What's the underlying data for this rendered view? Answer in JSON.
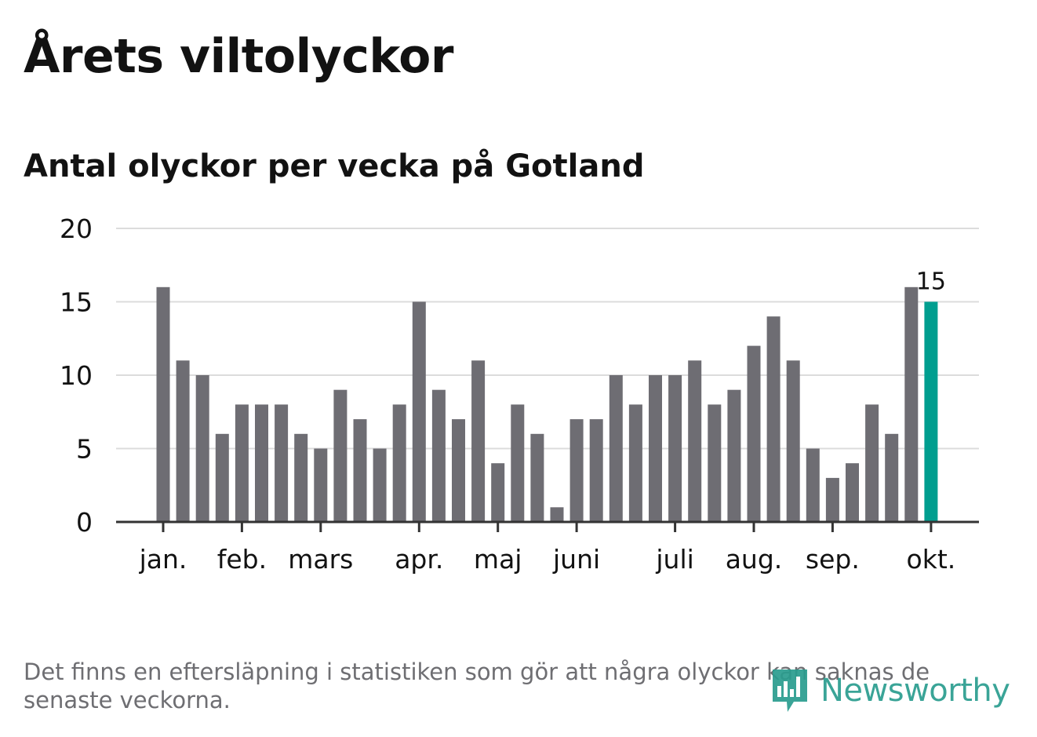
{
  "title": "Årets viltolyckor",
  "subtitle": "Antal olyckor per vecka på Gotland",
  "footnote": "Det finns en eftersläpning i statistiken som gör att några olyckor kan saknas de senaste veckorna.",
  "logo": {
    "text": "Newsworthy",
    "icon": "bar-chart-speech-bubble-icon"
  },
  "colors": {
    "bar": "#6e6d73",
    "highlight": "#009e8f",
    "grid": "#dcdcdc",
    "axis": "#333333",
    "text": "#121212",
    "muted": "#6e6e72"
  },
  "chart_data": {
    "type": "bar",
    "title": "Årets viltolyckor",
    "subtitle": "Antal olyckor per vecka på Gotland",
    "xlabel": "",
    "ylabel": "",
    "ylim": [
      0,
      20
    ],
    "yticks": [
      0,
      5,
      10,
      15,
      20
    ],
    "grid": true,
    "values": [
      16,
      11,
      10,
      6,
      8,
      8,
      8,
      6,
      5,
      9,
      7,
      5,
      8,
      15,
      9,
      7,
      11,
      4,
      8,
      6,
      1,
      7,
      7,
      10,
      8,
      10,
      10,
      11,
      8,
      9,
      12,
      14,
      11,
      5,
      3,
      4,
      8,
      6,
      16,
      15
    ],
    "highlight_index": 39,
    "highlight_label": "15",
    "month_ticks": [
      {
        "label": "jan.",
        "bar_index": 0
      },
      {
        "label": "feb.",
        "bar_index": 4
      },
      {
        "label": "mars",
        "bar_index": 8
      },
      {
        "label": "apr.",
        "bar_index": 13
      },
      {
        "label": "maj",
        "bar_index": 17
      },
      {
        "label": "juni",
        "bar_index": 21
      },
      {
        "label": "juli",
        "bar_index": 26
      },
      {
        "label": "aug.",
        "bar_index": 30
      },
      {
        "label": "sep.",
        "bar_index": 34
      },
      {
        "label": "okt.",
        "bar_index": 39
      }
    ]
  }
}
